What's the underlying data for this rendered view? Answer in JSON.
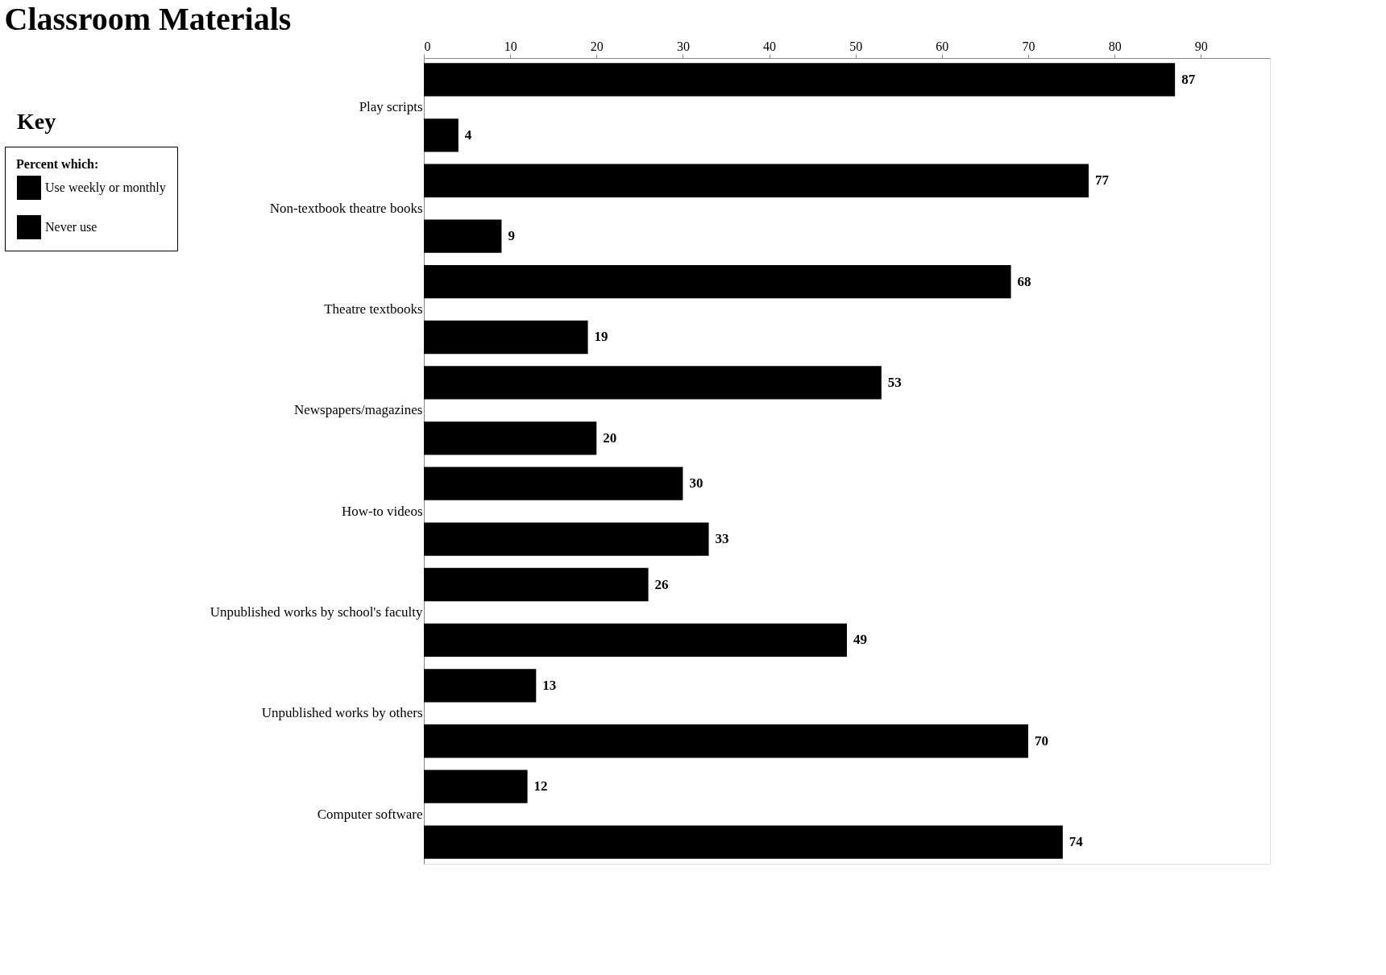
{
  "chart_data": {
    "type": "bar",
    "orientation": "horizontal",
    "title": "Classroom Materials",
    "legend_title": "Percent which:",
    "annotations": [
      "Key"
    ],
    "categories": [
      "Play scripts",
      "Non-textbook theatre books",
      "Theatre textbooks",
      "Newspapers/magazines",
      "How-to videos",
      "Unpublished works by school's faculty",
      "Unpublished works by others",
      "Computer software"
    ],
    "series": [
      {
        "name": "Use weekly or monthly",
        "color": "#000000",
        "values": [
          87,
          77,
          68,
          53,
          30,
          26,
          13,
          12
        ]
      },
      {
        "name": "Never use",
        "color": "#000000",
        "values": [
          4,
          9,
          19,
          20,
          33,
          49,
          70,
          74
        ]
      }
    ],
    "xlim": [
      0,
      98
    ],
    "xticks": [
      0,
      10,
      20,
      30,
      40,
      50,
      60,
      70,
      80,
      90
    ],
    "grid": false,
    "legend": "left",
    "data_labels": true
  }
}
